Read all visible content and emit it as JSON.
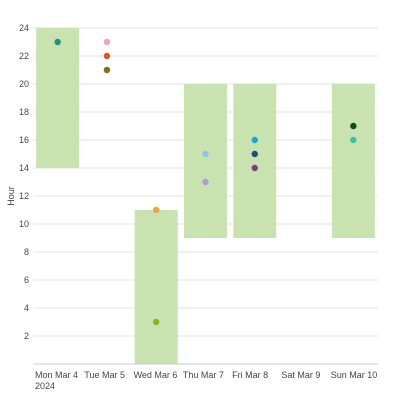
{
  "chart_data": {
    "type": "scatter",
    "ylabel": "Hour",
    "ylim": [
      0,
      24
    ],
    "yticks": [
      2,
      4,
      6,
      8,
      10,
      12,
      14,
      16,
      18,
      20,
      22,
      24
    ],
    "categories": [
      "Mon Mar 4",
      "Tue Mar 5",
      "Wed Mar 6",
      "Thu Mar 7",
      "Fri Mar 8",
      "Sat Mar 9",
      "Sun Mar 10"
    ],
    "first_category_sublabel": "2024",
    "grid": true,
    "ranges": [
      {
        "category": "Mon Mar 4",
        "start": 14,
        "end": 24
      },
      {
        "category": "Wed Mar 6",
        "start": 0,
        "end": 11
      },
      {
        "category": "Thu Mar 7",
        "start": 9,
        "end": 20
      },
      {
        "category": "Fri Mar 8",
        "start": 9,
        "end": 20
      },
      {
        "category": "Sun Mar 10",
        "start": 9,
        "end": 20
      }
    ],
    "points": [
      {
        "category": "Mon Mar 4",
        "y": 23,
        "color": "#2a8c7e"
      },
      {
        "category": "Tue Mar 5",
        "y": 23,
        "color": "#f4a6b0"
      },
      {
        "category": "Tue Mar 5",
        "y": 22,
        "color": "#e5531a"
      },
      {
        "category": "Tue Mar 5",
        "y": 21,
        "color": "#8a6a12"
      },
      {
        "category": "Wed Mar 6",
        "y": 11,
        "color": "#f2a33a"
      },
      {
        "category": "Wed Mar 6",
        "y": 3,
        "color": "#8fb21e"
      },
      {
        "category": "Thu Mar 7",
        "y": 15,
        "color": "#8fc4ea"
      },
      {
        "category": "Thu Mar 7",
        "y": 13,
        "color": "#b49ad8"
      },
      {
        "category": "Fri Mar 8",
        "y": 16,
        "color": "#1aa6d6"
      },
      {
        "category": "Fri Mar 8",
        "y": 15,
        "color": "#1a4f78"
      },
      {
        "category": "Fri Mar 8",
        "y": 14,
        "color": "#7a3f8a"
      },
      {
        "category": "Sun Mar 10",
        "y": 17,
        "color": "#0f4a1e"
      },
      {
        "category": "Sun Mar 10",
        "y": 16,
        "color": "#2ec9a4"
      }
    ],
    "colors": {
      "range_fill": "#c8e3b0",
      "gridline": "#e3e3e3",
      "axis_line": "#cccccc"
    }
  }
}
